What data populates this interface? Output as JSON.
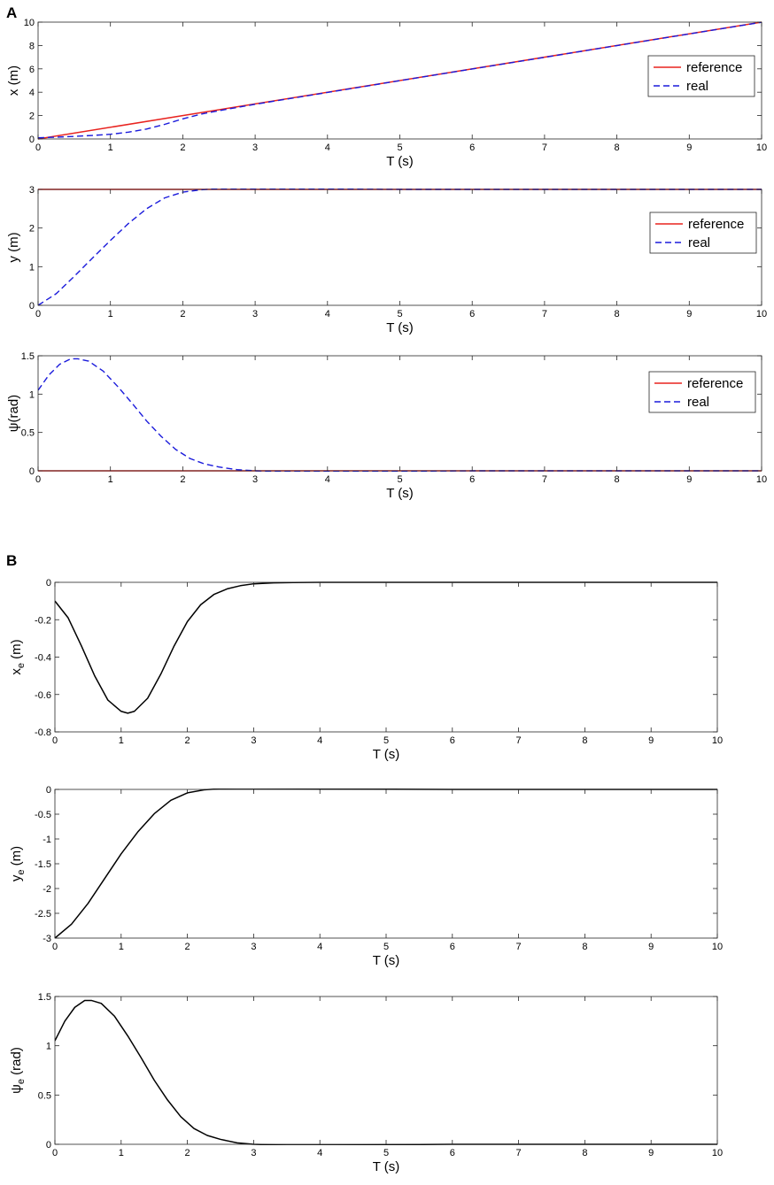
{
  "panels": {
    "A": "A",
    "B": "B"
  },
  "colors": {
    "reference": "#e8231f",
    "real": "#1a1adb",
    "error": "#000000",
    "axis": "#262626"
  },
  "chart_data": [
    {
      "type": "line",
      "panel": "A",
      "xlabel": "T (s)",
      "ylabel": "x (m)",
      "xlim": [
        0,
        10
      ],
      "ylim": [
        0,
        10
      ],
      "xticks": [
        0,
        1,
        2,
        3,
        4,
        5,
        6,
        7,
        8,
        9,
        10
      ],
      "yticks": [
        0,
        2,
        4,
        6,
        8,
        10
      ],
      "legend": {
        "position": "right",
        "entries": [
          "reference",
          "real"
        ]
      },
      "series": [
        {
          "name": "reference",
          "style": "solid",
          "color": "#e8231f",
          "x": [
            0,
            10
          ],
          "y": [
            0,
            10
          ]
        },
        {
          "name": "real",
          "style": "dashed",
          "color": "#1a1adb",
          "x": [
            0,
            0.25,
            0.5,
            0.75,
            1.0,
            1.25,
            1.5,
            1.75,
            2.0,
            2.25,
            2.5,
            3,
            4,
            5,
            6,
            7,
            8,
            9,
            10
          ],
          "y": [
            0.1,
            0.15,
            0.22,
            0.3,
            0.4,
            0.58,
            0.85,
            1.25,
            1.72,
            2.12,
            2.42,
            2.97,
            3.98,
            4.99,
            5.99,
            6.99,
            7.99,
            8.99,
            9.99
          ]
        }
      ]
    },
    {
      "type": "line",
      "panel": "A",
      "xlabel": "T (s)",
      "ylabel": "y (m)",
      "xlim": [
        0,
        10
      ],
      "ylim": [
        0,
        3
      ],
      "xticks": [
        0,
        1,
        2,
        3,
        4,
        5,
        6,
        7,
        8,
        9,
        10
      ],
      "yticks": [
        0,
        1,
        2,
        3
      ],
      "legend": {
        "position": "right",
        "entries": [
          "reference",
          "real"
        ]
      },
      "series": [
        {
          "name": "reference",
          "style": "solid",
          "color": "#e8231f",
          "x": [
            0,
            10
          ],
          "y": [
            3,
            3
          ]
        },
        {
          "name": "real",
          "style": "dashed",
          "color": "#1a1adb",
          "x": [
            0,
            0.25,
            0.5,
            0.75,
            1.0,
            1.25,
            1.5,
            1.75,
            2.0,
            2.25,
            2.5,
            2.75,
            3,
            4,
            5,
            6,
            7,
            8,
            9,
            10
          ],
          "y": [
            0,
            0.3,
            0.75,
            1.22,
            1.68,
            2.12,
            2.5,
            2.78,
            2.93,
            2.99,
            3.02,
            3.02,
            3.02,
            3.01,
            3.0,
            3.0,
            3.0,
            3.0,
            3.0,
            3.0
          ]
        }
      ]
    },
    {
      "type": "line",
      "panel": "A",
      "xlabel": "T (s)",
      "ylabel": "ψ(rad)",
      "xlim": [
        0,
        10
      ],
      "ylim": [
        0,
        1.5
      ],
      "xticks": [
        0,
        1,
        2,
        3,
        4,
        5,
        6,
        7,
        8,
        9,
        10
      ],
      "yticks": [
        0,
        0.5,
        1,
        1.5
      ],
      "yticklabels": [
        "0",
        "0.5",
        "1",
        "1.5"
      ],
      "legend": {
        "position": "right",
        "entries": [
          "reference",
          "real"
        ]
      },
      "series": [
        {
          "name": "reference",
          "style": "solid",
          "color": "#e8231f",
          "x": [
            0,
            10
          ],
          "y": [
            0,
            0
          ]
        },
        {
          "name": "real",
          "style": "dashed",
          "color": "#1a1adb",
          "x": [
            0,
            0.15,
            0.3,
            0.45,
            0.55,
            0.7,
            0.9,
            1.1,
            1.3,
            1.5,
            1.7,
            1.9,
            2.1,
            2.3,
            2.5,
            2.75,
            3.0,
            3.5,
            4,
            5,
            6,
            7,
            8,
            9,
            10
          ],
          "y": [
            1.05,
            1.25,
            1.39,
            1.46,
            1.46,
            1.43,
            1.3,
            1.1,
            0.88,
            0.65,
            0.45,
            0.28,
            0.16,
            0.09,
            0.05,
            0.015,
            0.0,
            -0.01,
            -0.01,
            -0.005,
            0,
            0,
            0,
            0,
            0
          ]
        }
      ]
    },
    {
      "type": "line",
      "panel": "B",
      "xlabel": "T (s)",
      "ylabel": "x_e (m)",
      "xlim": [
        0,
        10
      ],
      "ylim": [
        -0.8,
        0
      ],
      "xticks": [
        0,
        1,
        2,
        3,
        4,
        5,
        6,
        7,
        8,
        9,
        10
      ],
      "yticks": [
        -0.8,
        -0.6,
        -0.4,
        -0.2,
        0
      ],
      "yticklabels": [
        "-0.8",
        "-0.6",
        "-0.4",
        "-0.2",
        "0"
      ],
      "series": [
        {
          "style": "solid",
          "color": "#000000",
          "x": [
            0,
            0.2,
            0.4,
            0.6,
            0.8,
            1.0,
            1.1,
            1.2,
            1.4,
            1.6,
            1.8,
            2.0,
            2.2,
            2.4,
            2.6,
            2.8,
            3.0,
            3.3,
            3.6,
            4,
            5,
            6,
            7,
            8,
            9,
            10
          ],
          "y": [
            -0.1,
            -0.19,
            -0.34,
            -0.5,
            -0.63,
            -0.69,
            -0.7,
            -0.69,
            -0.62,
            -0.49,
            -0.34,
            -0.21,
            -0.12,
            -0.065,
            -0.035,
            -0.018,
            -0.008,
            -0.003,
            -0.001,
            0,
            0,
            0,
            0,
            0,
            0,
            0
          ]
        }
      ]
    },
    {
      "type": "line",
      "panel": "B",
      "xlabel": "T (s)",
      "ylabel": "y_e (m)",
      "xlim": [
        0,
        10
      ],
      "ylim": [
        -3,
        0
      ],
      "xticks": [
        0,
        1,
        2,
        3,
        4,
        5,
        6,
        7,
        8,
        9,
        10
      ],
      "yticks": [
        -3,
        -2.5,
        -2,
        -1.5,
        -1,
        -0.5,
        0
      ],
      "yticklabels": [
        "-3",
        "-2.5",
        "-2",
        "-1.5",
        "-1",
        "-0.5",
        "0"
      ],
      "series": [
        {
          "style": "solid",
          "color": "#000000",
          "x": [
            0,
            0.25,
            0.5,
            0.75,
            1.0,
            1.25,
            1.5,
            1.75,
            2.0,
            2.25,
            2.5,
            2.75,
            3.0,
            3.5,
            4,
            5,
            6,
            7,
            8,
            9,
            10
          ],
          "y": [
            -3.0,
            -2.72,
            -2.3,
            -1.8,
            -1.3,
            -0.86,
            -0.49,
            -0.22,
            -0.07,
            -0.01,
            0.015,
            0.02,
            0.02,
            0.015,
            0.01,
            0.005,
            0,
            0,
            0,
            0,
            0
          ]
        }
      ]
    },
    {
      "type": "line",
      "panel": "B",
      "xlabel": "T (s)",
      "ylabel": "ψ_e (rad)",
      "xlim": [
        0,
        10
      ],
      "ylim": [
        0,
        1.5
      ],
      "xticks": [
        0,
        1,
        2,
        3,
        4,
        5,
        6,
        7,
        8,
        9,
        10
      ],
      "yticks": [
        0,
        0.5,
        1,
        1.5
      ],
      "yticklabels": [
        "0",
        "0.5",
        "1",
        "1.5"
      ],
      "series": [
        {
          "style": "solid",
          "color": "#000000",
          "x": [
            0,
            0.15,
            0.3,
            0.45,
            0.55,
            0.7,
            0.9,
            1.1,
            1.3,
            1.5,
            1.7,
            1.9,
            2.1,
            2.3,
            2.5,
            2.75,
            3.0,
            3.5,
            4,
            5,
            6,
            7,
            8,
            9,
            10
          ],
          "y": [
            1.05,
            1.25,
            1.39,
            1.46,
            1.46,
            1.43,
            1.3,
            1.1,
            0.88,
            0.65,
            0.45,
            0.28,
            0.16,
            0.09,
            0.05,
            0.015,
            0.0,
            -0.01,
            -0.01,
            -0.005,
            0,
            0,
            0,
            0,
            0
          ]
        }
      ]
    }
  ]
}
